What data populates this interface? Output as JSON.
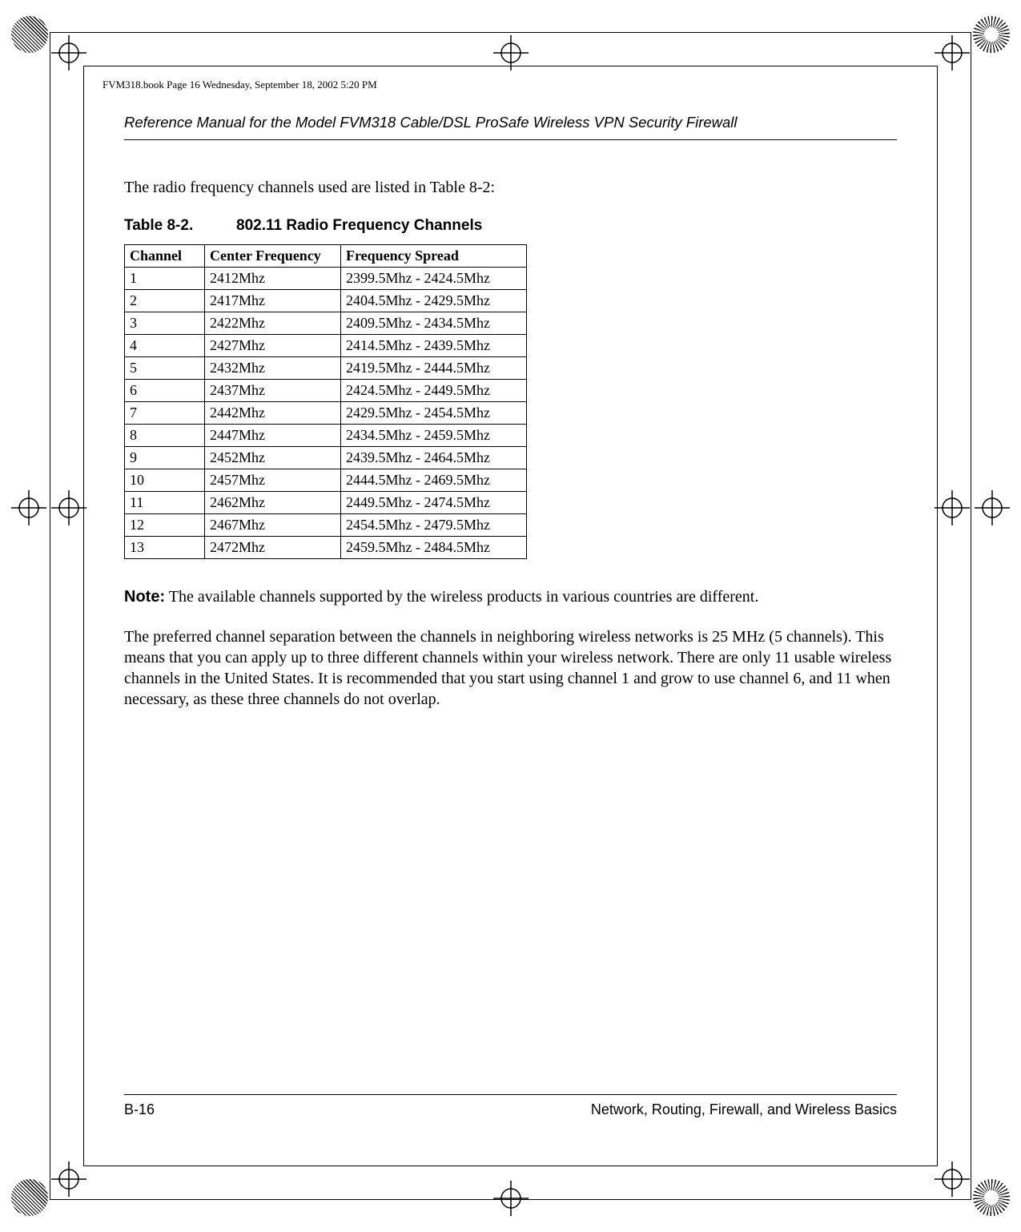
{
  "runhead": "FVM318.book  Page 16  Wednesday, September 18, 2002  5:20 PM",
  "header_title": "Reference Manual for the Model FVM318 Cable/DSL ProSafe Wireless VPN Security Firewall",
  "intro_text": "The radio frequency channels used are listed in Table 8-2:",
  "table_caption_num": "Table 8-2.",
  "table_caption_title": "802.11 Radio Frequency Channels",
  "table": {
    "columns": [
      "Channel",
      "Center Frequency",
      "Frequency Spread"
    ],
    "rows": [
      [
        "1",
        "2412Mhz",
        "2399.5Mhz - 2424.5Mhz"
      ],
      [
        "2",
        "2417Mhz",
        "2404.5Mhz - 2429.5Mhz"
      ],
      [
        "3",
        "2422Mhz",
        "2409.5Mhz - 2434.5Mhz"
      ],
      [
        "4",
        "2427Mhz",
        "2414.5Mhz - 2439.5Mhz"
      ],
      [
        "5",
        "2432Mhz",
        "2419.5Mhz - 2444.5Mhz"
      ],
      [
        "6",
        "2437Mhz",
        "2424.5Mhz - 2449.5Mhz"
      ],
      [
        "7",
        "2442Mhz",
        "2429.5Mhz - 2454.5Mhz"
      ],
      [
        "8",
        "2447Mhz",
        "2434.5Mhz - 2459.5Mhz"
      ],
      [
        "9",
        "2452Mhz",
        "2439.5Mhz - 2464.5Mhz"
      ],
      [
        "10",
        "2457Mhz",
        "2444.5Mhz - 2469.5Mhz"
      ],
      [
        "11",
        "2462Mhz",
        "2449.5Mhz - 2474.5Mhz"
      ],
      [
        "12",
        "2467Mhz",
        "2454.5Mhz - 2479.5Mhz"
      ],
      [
        "13",
        "2472Mhz",
        "2459.5Mhz - 2484.5Mhz"
      ]
    ]
  },
  "note_label": "Note:",
  "note_text": " The available channels supported by the wireless products in various countries are different.",
  "para2": "The preferred channel separation between the channels in neighboring wireless networks is 25 MHz (5 channels). This means that you can apply up to three different channels within your wireless network. There are only 11 usable wireless channels in the United States. It is recommended that you start using channel 1 and grow to use channel 6, and 11 when necessary, as these three channels do not overlap.",
  "footer_left": "B-16",
  "footer_right": "Network, Routing, Firewall, and Wireless Basics"
}
